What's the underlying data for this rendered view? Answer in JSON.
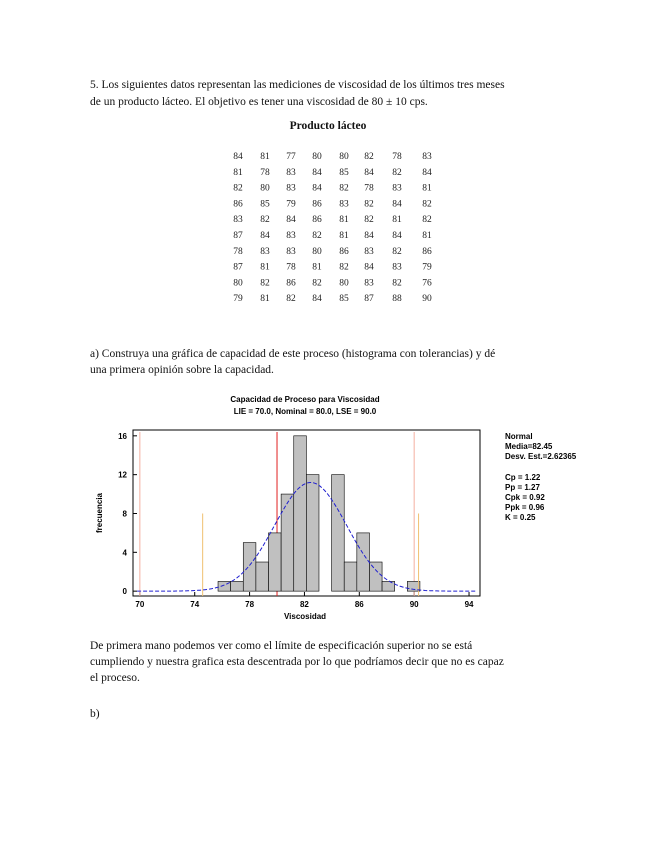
{
  "question": {
    "lines": [
      "5. Los siguientes datos representan las mediciones de viscosidad de los últimos tres meses",
      "de un producto lácteo. El objetivo es tener una viscosidad de 80 ± 10 cps."
    ]
  },
  "table": {
    "title": "Producto lácteo",
    "rows": [
      [
        84,
        81,
        77,
        80,
        80,
        82,
        78,
        83
      ],
      [
        81,
        78,
        83,
        84,
        85,
        84,
        82,
        84
      ],
      [
        82,
        80,
        83,
        84,
        82,
        78,
        83,
        81
      ],
      [
        86,
        85,
        79,
        86,
        83,
        82,
        84,
        82
      ],
      [
        83,
        82,
        84,
        86,
        81,
        82,
        81,
        82
      ],
      [
        87,
        84,
        83,
        82,
        81,
        84,
        84,
        81
      ],
      [
        78,
        83,
        83,
        80,
        86,
        83,
        82,
        86
      ],
      [
        87,
        81,
        78,
        81,
        82,
        84,
        83,
        79
      ],
      [
        80,
        82,
        86,
        82,
        80,
        83,
        82,
        76
      ],
      [
        79,
        81,
        82,
        84,
        85,
        87,
        88,
        90
      ]
    ]
  },
  "part_a": {
    "lines": [
      "a) Construya una gráfica de capacidad de este proceso (histograma con tolerancias) y dé",
      "una primera opinión sobre la capacidad."
    ]
  },
  "chart_data": {
    "type": "histogram",
    "title": "Capacidad de Proceso para  Viscosidad",
    "subtitle": "LIE = 70.0, Nominal = 80.0, LSE = 90.0",
    "x_label": "Viscosidad",
    "y_label": "frecuencia",
    "bins": [
      75.7,
      76.62,
      77.54,
      78.46,
      79.38,
      80.3,
      81.22,
      82.14,
      83.06,
      83.98,
      84.9,
      85.82,
      86.74,
      87.66,
      88.58,
      89.5,
      90.42
    ],
    "counts": [
      1,
      1,
      5,
      3,
      6,
      10,
      16,
      12,
      0,
      12,
      3,
      6,
      3,
      1,
      0,
      1
    ],
    "color": "#c0c0c0",
    "xlim": [
      69.5,
      94.8
    ],
    "xticks": [
      70,
      74,
      78,
      82,
      86,
      90,
      94
    ],
    "ylim": [
      -0.5,
      16.6
    ],
    "yticks": [
      0,
      4,
      8,
      12,
      16
    ],
    "spec_limits": {
      "lie": 70,
      "nominal": 80,
      "lse": 90
    },
    "normal": {
      "mean": 82.45,
      "sd": 2.62365,
      "color": "#2020d0"
    },
    "stats_lines": [
      "Normal",
      "Media=82.45",
      "Desv. Est.=2.62365"
    ],
    "index_lines": [
      "Cp = 1.22",
      "Pp = 1.27",
      "Cpk = 0.92",
      "Ppk = 0.96",
      "K = 0.25"
    ]
  },
  "conclusion": {
    "lines": [
      "De primera mano podemos ver como el límite de especificación superior no se está",
      "cumpliendo y nuestra grafica esta descentrada por lo que podríamos decir que no es capaz",
      "el proceso."
    ]
  },
  "part_b": "b)"
}
